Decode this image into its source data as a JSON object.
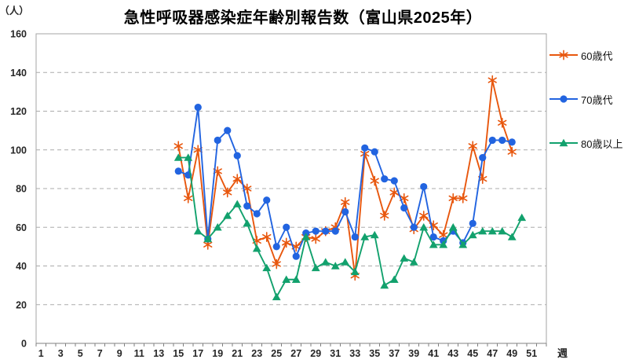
{
  "title": "急性呼吸器感染症年齢別報告数（富山県2025年）",
  "y_unit_label": "（人）",
  "x_unit_label": "週",
  "chart_data": {
    "type": "line",
    "title": "急性呼吸器感染症年齢別報告数（富山県2025年）",
    "xlabel": "週",
    "ylabel": "（人）",
    "x_axis": {
      "min": 1,
      "max": 52,
      "tick_labels": [
        "1",
        "3",
        "5",
        "7",
        "9",
        "11",
        "13",
        "15",
        "17",
        "19",
        "21",
        "23",
        "25",
        "27",
        "29",
        "31",
        "33",
        "35",
        "37",
        "39",
        "41",
        "43",
        "45",
        "47",
        "49",
        "51"
      ]
    },
    "y_axis": {
      "min": 0,
      "max": 160,
      "step": 20,
      "tick_labels": [
        "0",
        "20",
        "40",
        "60",
        "80",
        "100",
        "120",
        "140",
        "160"
      ]
    },
    "grid": "horizontal-dashed",
    "legend_position": "right",
    "series": [
      {
        "name": "60歳代",
        "marker": "asterisk",
        "color": "#e8570e",
        "weeks": [
          15,
          16,
          17,
          18,
          19,
          20,
          21,
          22,
          23,
          24,
          25,
          26,
          27,
          28,
          29,
          30,
          31,
          32,
          33,
          34,
          35,
          36,
          37,
          38,
          39,
          40,
          41,
          42,
          43,
          44,
          45,
          46,
          47,
          48,
          49
        ],
        "values": [
          102,
          75,
          100,
          51,
          89,
          78,
          85,
          80,
          53,
          55,
          41,
          52,
          50,
          55,
          54,
          58,
          60,
          73,
          35,
          98,
          84,
          66,
          78,
          75,
          59,
          66,
          61,
          56,
          75,
          75,
          102,
          85,
          136,
          114,
          99
        ]
      },
      {
        "name": "70歳代",
        "marker": "circle",
        "color": "#2264e0",
        "weeks": [
          15,
          16,
          17,
          18,
          19,
          20,
          21,
          22,
          23,
          24,
          25,
          26,
          27,
          28,
          29,
          30,
          31,
          32,
          33,
          34,
          35,
          36,
          37,
          38,
          39,
          40,
          41,
          42,
          43,
          44,
          45,
          46,
          47,
          48,
          49
        ],
        "values": [
          89,
          87,
          122,
          54,
          105,
          110,
          97,
          71,
          67,
          74,
          50,
          60,
          45,
          57,
          58,
          58,
          58,
          68,
          55,
          101,
          99,
          85,
          84,
          70,
          60,
          81,
          55,
          53,
          58,
          52,
          62,
          96,
          105,
          105,
          104
        ]
      },
      {
        "name": "80歳以上",
        "marker": "triangle",
        "color": "#12a16d",
        "weeks": [
          15,
          16,
          17,
          18,
          19,
          20,
          21,
          22,
          23,
          24,
          25,
          26,
          27,
          28,
          29,
          30,
          31,
          32,
          33,
          34,
          35,
          36,
          37,
          38,
          39,
          40,
          41,
          42,
          43,
          44,
          45,
          46,
          47,
          48,
          49,
          50
        ],
        "values": [
          96,
          96,
          58,
          54,
          60,
          66,
          72,
          62,
          49,
          39,
          24,
          33,
          33,
          55,
          39,
          42,
          40,
          42,
          37,
          55,
          56,
          30,
          33,
          44,
          42,
          60,
          51,
          51,
          60,
          51,
          56,
          58,
          58,
          58,
          55,
          65
        ]
      }
    ]
  }
}
